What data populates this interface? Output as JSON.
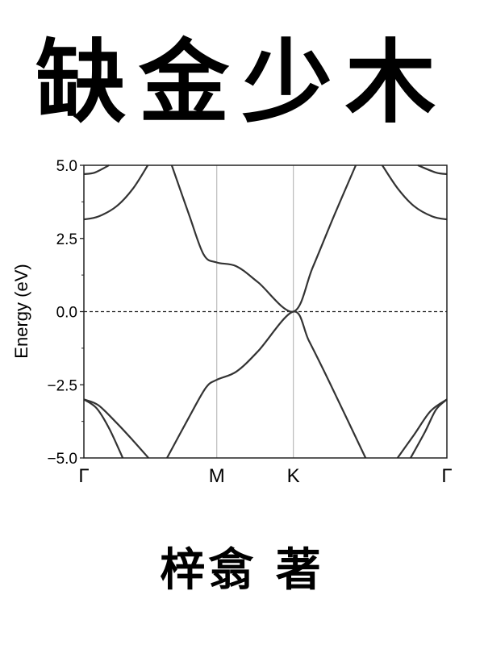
{
  "cover": {
    "title": "缺金少木",
    "author": "梓翕 著"
  },
  "chart_data": {
    "type": "line",
    "title": "",
    "xlabel": "",
    "ylabel": "Energy (eV)",
    "ylim": [
      -5.0,
      5.0
    ],
    "xlim": [
      0,
      1
    ],
    "yticks": [
      5.0,
      2.5,
      0.0,
      -2.5,
      -5.0
    ],
    "ytick_labels": [
      "5.0",
      "2.5",
      "0.0",
      "−2.5",
      "−5.0"
    ],
    "y_minor_step": 1.25,
    "kpoints": [
      {
        "label": "Γ",
        "x": 0
      },
      {
        "label": "M",
        "x": 0.366
      },
      {
        "label": "K",
        "x": 0.577
      },
      {
        "label": "Γ",
        "x": 1
      }
    ],
    "fermi_level": 0.0,
    "line_color": "#333333",
    "kline_color": "#bbbbbb",
    "grid": false,
    "series": [
      {
        "points": [
          [
            0.242,
            5.0
          ],
          [
            0.29,
            3.3
          ],
          [
            0.33,
            1.95
          ],
          [
            0.366,
            1.68
          ],
          [
            0.42,
            1.55
          ],
          [
            0.48,
            1.0
          ],
          [
            0.577,
            0.0
          ],
          [
            0.63,
            1.5
          ],
          [
            0.69,
            3.3
          ],
          [
            0.749,
            5.0
          ]
        ]
      },
      {
        "points": [
          [
            0.229,
            -5.0
          ],
          [
            0.29,
            -3.6
          ],
          [
            0.336,
            -2.6
          ],
          [
            0.366,
            -2.33
          ],
          [
            0.42,
            -2.05
          ],
          [
            0.48,
            -1.35
          ],
          [
            0.577,
            0.0
          ],
          [
            0.62,
            -1.0
          ],
          [
            0.676,
            -2.4
          ],
          [
            0.776,
            -5.0
          ]
        ]
      },
      {
        "points": [
          [
            0.0,
            3.15
          ],
          [
            0.04,
            3.25
          ],
          [
            0.09,
            3.6
          ],
          [
            0.135,
            4.2
          ],
          [
            0.176,
            5.0
          ]
        ]
      },
      {
        "points": [
          [
            0.822,
            5.0
          ],
          [
            0.865,
            4.2
          ],
          [
            0.91,
            3.6
          ],
          [
            0.96,
            3.25
          ],
          [
            1.0,
            3.15
          ]
        ]
      },
      {
        "points": [
          [
            0.0,
            4.7
          ],
          [
            0.03,
            4.75
          ],
          [
            0.069,
            5.0
          ]
        ]
      },
      {
        "points": [
          [
            0.92,
            5.0
          ],
          [
            0.97,
            4.75
          ],
          [
            1.0,
            4.7
          ]
        ]
      },
      {
        "points": [
          [
            0.0,
            -3.0
          ],
          [
            0.04,
            -3.2
          ],
          [
            0.09,
            -3.8
          ],
          [
            0.135,
            -4.4
          ],
          [
            0.178,
            -5.0
          ]
        ]
      },
      {
        "points": [
          [
            0.0,
            -3.0
          ],
          [
            0.035,
            -3.3
          ],
          [
            0.07,
            -4.0
          ],
          [
            0.107,
            -5.0
          ]
        ]
      },
      {
        "points": [
          [
            0.864,
            -5.0
          ],
          [
            0.91,
            -4.2
          ],
          [
            0.955,
            -3.4
          ],
          [
            1.0,
            -3.0
          ]
        ]
      },
      {
        "points": [
          [
            0.9,
            -5.0
          ],
          [
            0.94,
            -4.1
          ],
          [
            0.97,
            -3.35
          ],
          [
            1.0,
            -3.0
          ]
        ]
      }
    ]
  }
}
